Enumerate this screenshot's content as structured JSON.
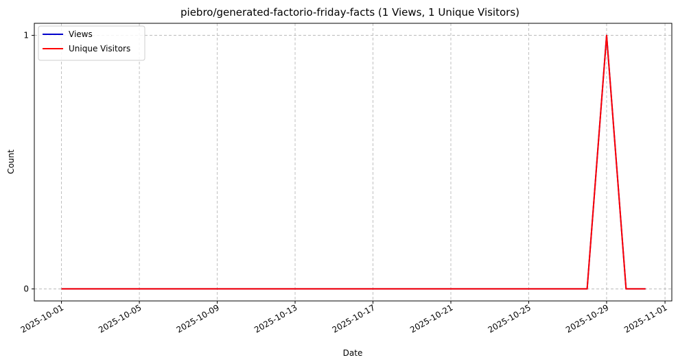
{
  "chart_data": {
    "type": "line",
    "title": "piebro/generated-factorio-friday-facts (1 Views, 1 Unique Visitors)",
    "xlabel": "Date",
    "ylabel": "Count",
    "x": [
      "2025-10-01",
      "2025-10-02",
      "2025-10-03",
      "2025-10-04",
      "2025-10-05",
      "2025-10-06",
      "2025-10-07",
      "2025-10-08",
      "2025-10-09",
      "2025-10-10",
      "2025-10-11",
      "2025-10-12",
      "2025-10-13",
      "2025-10-14",
      "2025-10-15",
      "2025-10-16",
      "2025-10-17",
      "2025-10-18",
      "2025-10-19",
      "2025-10-20",
      "2025-10-21",
      "2025-10-22",
      "2025-10-23",
      "2025-10-24",
      "2025-10-25",
      "2025-10-26",
      "2025-10-27",
      "2025-10-28",
      "2025-10-29",
      "2025-10-30",
      "2025-10-31"
    ],
    "series": [
      {
        "name": "Views",
        "color": "#0000cc",
        "values": [
          0,
          0,
          0,
          0,
          0,
          0,
          0,
          0,
          0,
          0,
          0,
          0,
          0,
          0,
          0,
          0,
          0,
          0,
          0,
          0,
          0,
          0,
          0,
          0,
          0,
          0,
          0,
          0,
          1,
          0,
          0
        ]
      },
      {
        "name": "Unique Visitors",
        "color": "#ff0000",
        "values": [
          0,
          0,
          0,
          0,
          0,
          0,
          0,
          0,
          0,
          0,
          0,
          0,
          0,
          0,
          0,
          0,
          0,
          0,
          0,
          0,
          0,
          0,
          0,
          0,
          0,
          0,
          0,
          0,
          1,
          0,
          0
        ]
      }
    ],
    "xticks": [
      "2025-10-01",
      "2025-10-05",
      "2025-10-09",
      "2025-10-13",
      "2025-10-17",
      "2025-10-21",
      "2025-10-25",
      "2025-10-29",
      "2025-11-01"
    ],
    "yticks": [
      0,
      1
    ],
    "xlim": [
      "2025-09-30",
      "2025-11-01"
    ],
    "ylim": [
      0,
      1
    ],
    "grid": true,
    "legend": "top-left"
  }
}
